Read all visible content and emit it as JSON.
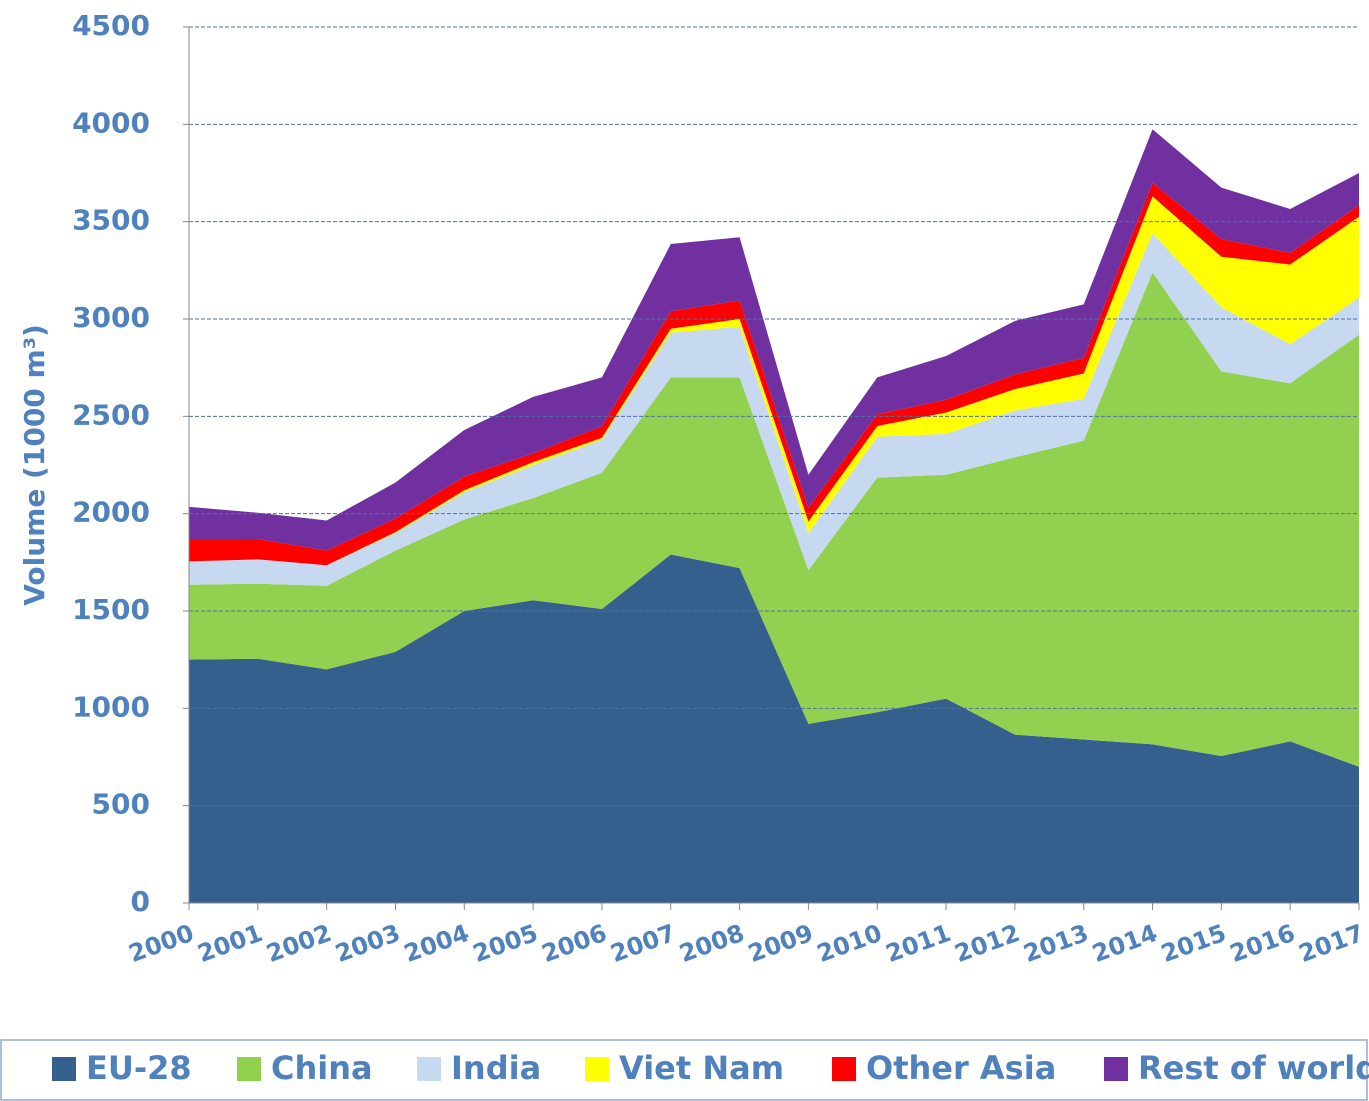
{
  "chart_data": {
    "type": "stacked_area",
    "y_label": "Volume (1000 m³)",
    "categories": [
      "2000",
      "2001",
      "2002",
      "2003",
      "2004",
      "2005",
      "2006",
      "2007",
      "2008",
      "2009",
      "2010",
      "2011",
      "2012",
      "2013",
      "2014",
      "2015",
      "2016",
      "2017"
    ],
    "series": [
      {
        "name": "EU-28",
        "color": "#355f8c",
        "values": [
          1250,
          1255,
          1200,
          1290,
          1500,
          1555,
          1510,
          1790,
          1720,
          920,
          980,
          1050,
          865,
          840,
          815,
          755,
          830,
          700
        ]
      },
      {
        "name": "China",
        "color": "#92d050",
        "values": [
          385,
          385,
          430,
          520,
          470,
          525,
          700,
          910,
          980,
          790,
          1205,
          1150,
          1425,
          1535,
          2425,
          1975,
          1840,
          2220
        ]
      },
      {
        "name": "India",
        "color": "#c6d9f1",
        "values": [
          120,
          125,
          105,
          90,
          140,
          170,
          170,
          230,
          260,
          190,
          210,
          210,
          240,
          215,
          200,
          330,
          200,
          190
        ]
      },
      {
        "name": "Viet Nam",
        "color": "#ffff00",
        "values": [
          0,
          0,
          0,
          5,
          10,
          15,
          10,
          20,
          40,
          60,
          55,
          110,
          110,
          130,
          190,
          260,
          410,
          415
        ]
      },
      {
        "name": "Other Asia",
        "color": "#ff0000",
        "values": [
          115,
          105,
          75,
          70,
          70,
          45,
          60,
          90,
          95,
          70,
          60,
          65,
          75,
          80,
          70,
          90,
          60,
          60
        ]
      },
      {
        "name": "Rest of world",
        "color": "#7030a0",
        "values": [
          165,
          135,
          155,
          185,
          240,
          290,
          250,
          345,
          325,
          170,
          190,
          225,
          275,
          275,
          275,
          265,
          225,
          165
        ]
      }
    ],
    "ylim": [
      0,
      4500
    ],
    "yticks": [
      0,
      500,
      1000,
      1500,
      2000,
      2500,
      3000,
      3500,
      4000,
      4500
    ],
    "grid": true,
    "legend": "bottom"
  }
}
